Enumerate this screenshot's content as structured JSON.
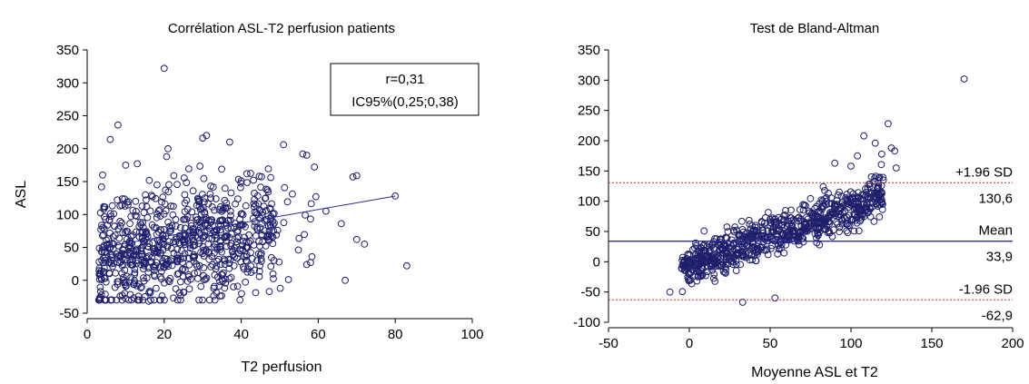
{
  "colors": {
    "marker": "#1f1f6b",
    "regression": "#2b2b9a",
    "mean_line": "#2b2b9a",
    "sd_line": "#c0392b",
    "axis": "#000000"
  },
  "chart_data": [
    {
      "type": "scatter",
      "title": "Corrélation ASL-T2 perfusion patients",
      "xlabel": "T2 perfusion",
      "ylabel": "ASL",
      "xlim": [
        0,
        100
      ],
      "ylim": [
        -50,
        350
      ],
      "x_ticks": [
        "0",
        "20",
        "40",
        "60",
        "80",
        "100"
      ],
      "y_ticks": [
        "-50",
        "0",
        "50",
        "100",
        "150",
        "200",
        "250",
        "300",
        "350"
      ],
      "grid": false,
      "annotation": {
        "line1": "r=0,31",
        "line2": "IC95%(0,25;0,38)",
        "placement": "top-right"
      },
      "regression": {
        "x": [
          3,
          80
        ],
        "y": [
          49,
          128
        ]
      },
      "cloud": {
        "n": 820,
        "x_range": [
          3,
          60
        ],
        "y_range": [
          -30,
          220
        ]
      },
      "points": [
        {
          "x": 20,
          "y": 322
        },
        {
          "x": 8,
          "y": 236
        },
        {
          "x": 6,
          "y": 214
        },
        {
          "x": 31,
          "y": 220
        },
        {
          "x": 30,
          "y": 216
        },
        {
          "x": 37,
          "y": 210
        },
        {
          "x": 51,
          "y": 206
        },
        {
          "x": 21,
          "y": 200
        },
        {
          "x": 13,
          "y": 177
        },
        {
          "x": 80,
          "y": 128
        },
        {
          "x": 83,
          "y": 22
        },
        {
          "x": 70,
          "y": 159
        },
        {
          "x": 69,
          "y": 157
        },
        {
          "x": 72,
          "y": 55
        },
        {
          "x": 70,
          "y": 62
        },
        {
          "x": 67,
          "y": 0
        },
        {
          "x": 66,
          "y": 86
        },
        {
          "x": 58,
          "y": 27
        },
        {
          "x": 57,
          "y": 24
        },
        {
          "x": 59,
          "y": 172
        },
        {
          "x": 56,
          "y": 192
        },
        {
          "x": 57,
          "y": 190
        },
        {
          "x": 62,
          "y": 105
        },
        {
          "x": 58,
          "y": 93
        },
        {
          "x": 15,
          "y": -25
        },
        {
          "x": 16,
          "y": -32
        },
        {
          "x": 25,
          "y": -18
        },
        {
          "x": 38,
          "y": -10
        },
        {
          "x": 4,
          "y": 160
        },
        {
          "x": 10,
          "y": 175
        }
      ]
    },
    {
      "type": "scatter",
      "title": "Test de Bland-Altman",
      "xlabel": "Moyenne ASL et T2",
      "ylabel": "",
      "xlim": [
        -50,
        200
      ],
      "ylim": [
        -100,
        350
      ],
      "x_ticks": [
        "-50",
        "0",
        "50",
        "100",
        "150",
        "200"
      ],
      "y_ticks": [
        "-100",
        "-50",
        "0",
        "50",
        "100",
        "150",
        "200",
        "250",
        "300",
        "350"
      ],
      "grid": false,
      "reference_lines": [
        {
          "name": "+1.96 SD",
          "value": 130.6,
          "value_label": "130,6",
          "style": "dotted"
        },
        {
          "name": "Mean",
          "value": 33.9,
          "value_label": "33,9",
          "style": "solid"
        },
        {
          "name": "-1.96 SD",
          "value": -62.9,
          "value_label": "-62,9",
          "style": "dotted"
        }
      ],
      "cloud": {
        "n": 820,
        "x_range": [
          -5,
          120
        ],
        "slope": 0.95,
        "intercept": -6,
        "spread": 32
      },
      "points": [
        {
          "x": 170,
          "y": 302
        },
        {
          "x": 123,
          "y": 228
        },
        {
          "x": 120,
          "y": 135
        },
        {
          "x": 128,
          "y": 155
        },
        {
          "x": 127,
          "y": 183
        },
        {
          "x": 125,
          "y": 188
        },
        {
          "x": 108,
          "y": 208
        },
        {
          "x": 113,
          "y": 90
        },
        {
          "x": 110,
          "y": 98
        },
        {
          "x": 53,
          "y": -60
        },
        {
          "x": 33,
          "y": -67
        },
        {
          "x": -12,
          "y": -50
        },
        {
          "x": 98,
          "y": 48
        },
        {
          "x": 100,
          "y": 158
        },
        {
          "x": 90,
          "y": 163
        },
        {
          "x": 104,
          "y": 175
        },
        {
          "x": 115,
          "y": 196
        },
        {
          "x": 119,
          "y": 178
        }
      ]
    }
  ]
}
